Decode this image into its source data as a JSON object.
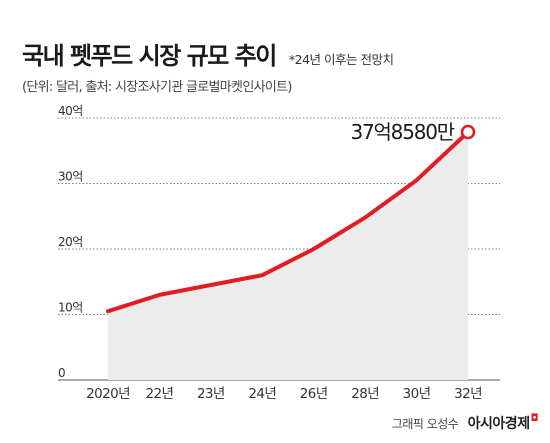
{
  "header": {
    "title": "국내 펫푸드 시장 규모 추이",
    "note": "*24년 이후는 전망치",
    "subtitle": "(단위: 달러, 출처: 시장조사기관 글로벌마켓인사이트)"
  },
  "footer": {
    "credit": "그래픽 오성수",
    "brand": "아시아경제",
    "brand_mark": "◘"
  },
  "colors": {
    "line": "#e31b23",
    "area": "#ececec",
    "grid": "#555555",
    "text": "#333333"
  },
  "chart_data": {
    "type": "area",
    "title": "국내 펫푸드 시장 규모 추이",
    "xlabel": "",
    "ylabel": "",
    "categories": [
      "2020년",
      "22년",
      "23년",
      "24년",
      "26년",
      "28년",
      "30년",
      "32년"
    ],
    "series": [
      {
        "values": [
          10.5,
          13.0,
          14.5,
          16.0,
          20.0,
          24.8,
          30.5,
          37.858
        ]
      }
    ],
    "yticks": [
      {
        "value": 0,
        "label": "0"
      },
      {
        "value": 10,
        "label": "10억"
      },
      {
        "value": 20,
        "label": "20억"
      },
      {
        "value": 30,
        "label": "30억"
      },
      {
        "value": 40,
        "label": "40억"
      }
    ],
    "ylim": [
      0,
      40
    ],
    "grid": true,
    "annotations": [
      {
        "category": "32년",
        "value": 37.858,
        "text": "37억8580만"
      }
    ]
  }
}
